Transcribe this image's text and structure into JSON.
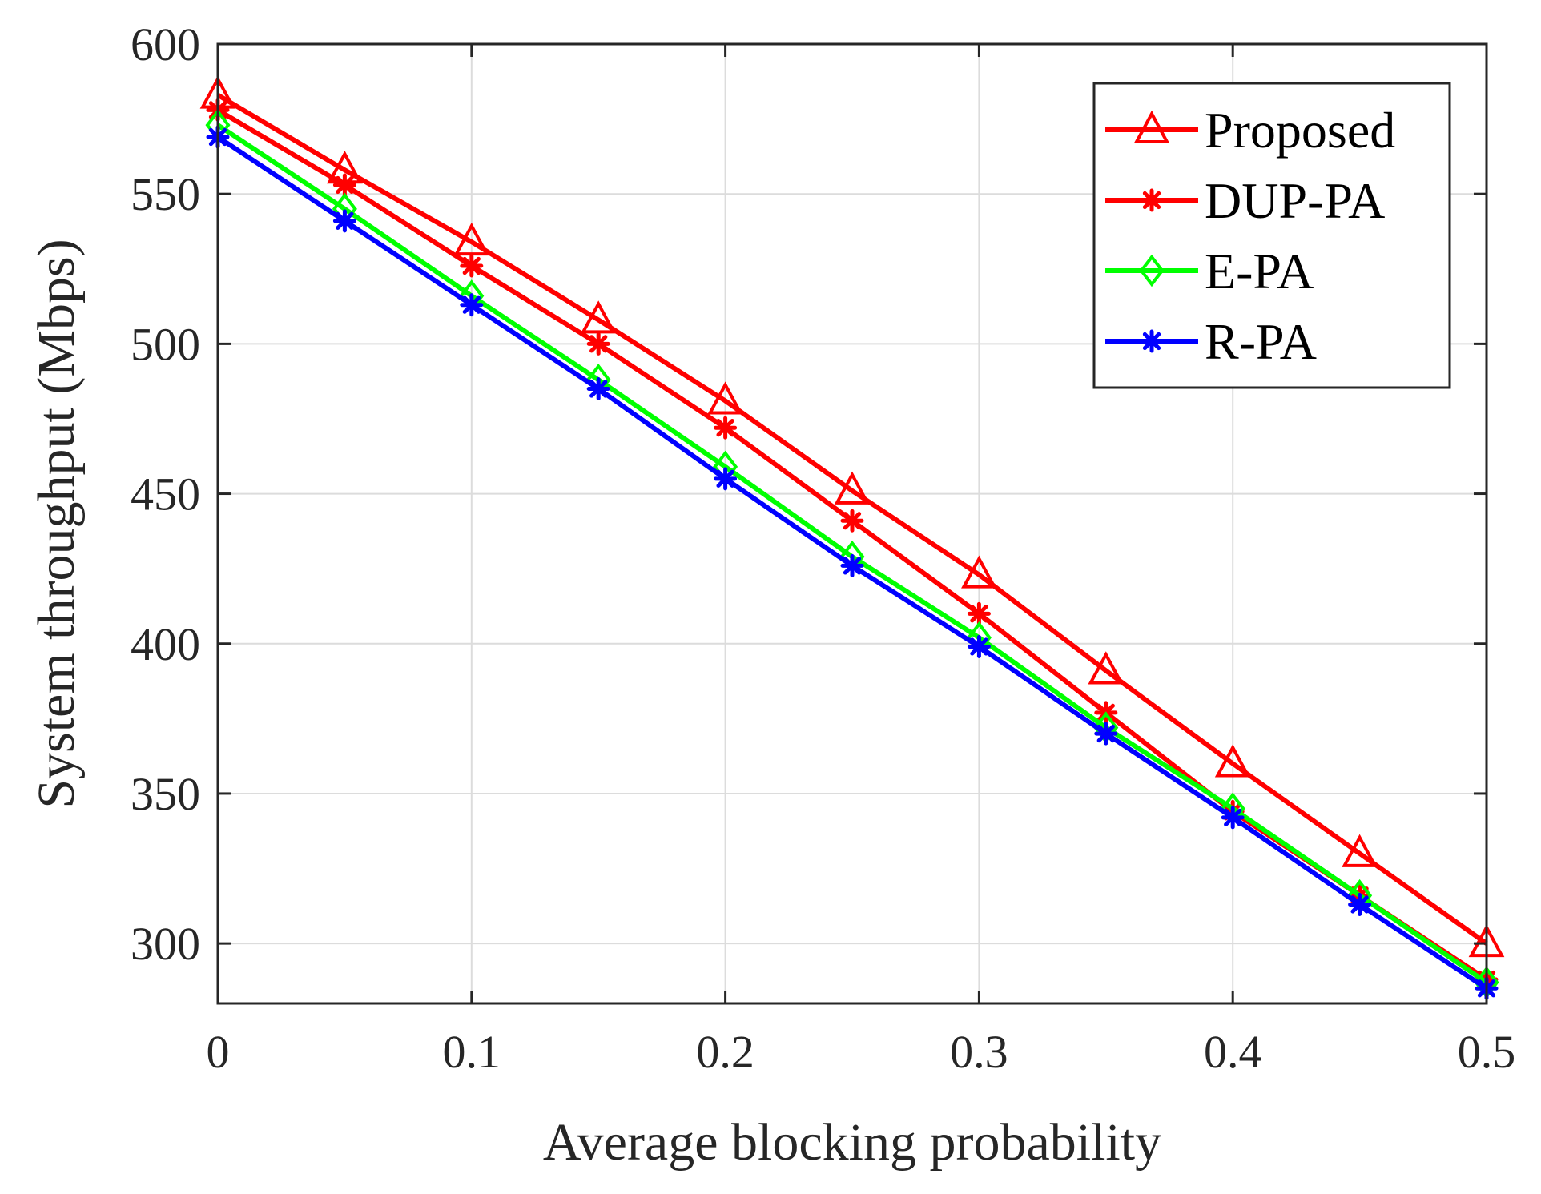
{
  "chart_data": {
    "type": "line",
    "title": "",
    "xlabel": "Average blocking probability",
    "ylabel": "System throughput (Mbps)",
    "xlim": [
      0,
      0.5
    ],
    "ylim": [
      280,
      600
    ],
    "xticks": [
      0,
      0.1,
      0.2,
      0.3,
      0.4,
      0.5
    ],
    "xtick_labels": [
      "0",
      "0.1",
      "0.2",
      "0.3",
      "0.4",
      "0.5"
    ],
    "yticks": [
      300,
      350,
      400,
      450,
      500,
      550,
      600
    ],
    "ytick_labels": [
      "300",
      "350",
      "400",
      "450",
      "500",
      "550",
      "600"
    ],
    "grid": true,
    "legend_position": "top-right",
    "x": [
      0,
      0.05,
      0.1,
      0.15,
      0.2,
      0.25,
      0.3,
      0.35,
      0.4,
      0.45,
      0.5
    ],
    "series": [
      {
        "name": "Proposed",
        "color": "#ff0000",
        "marker": "triangle",
        "values": [
          583,
          558,
          534,
          508,
          481,
          451,
          423,
          391,
          360,
          330,
          300
        ]
      },
      {
        "name": "DUP-PA",
        "color": "#ff0000",
        "marker": "asterisk",
        "values": [
          578,
          553,
          526,
          500,
          472,
          441,
          410,
          377,
          344,
          316,
          288
        ]
      },
      {
        "name": "E-PA",
        "color": "#00ff00",
        "marker": "diamond",
        "values": [
          573,
          545,
          516,
          488,
          459,
          429,
          402,
          372,
          345,
          316,
          287
        ]
      },
      {
        "name": "R-PA",
        "color": "#0000ff",
        "marker": "asterisk",
        "values": [
          569,
          541,
          513,
          485,
          455,
          426,
          399,
          370,
          342,
          313,
          285
        ]
      }
    ]
  }
}
